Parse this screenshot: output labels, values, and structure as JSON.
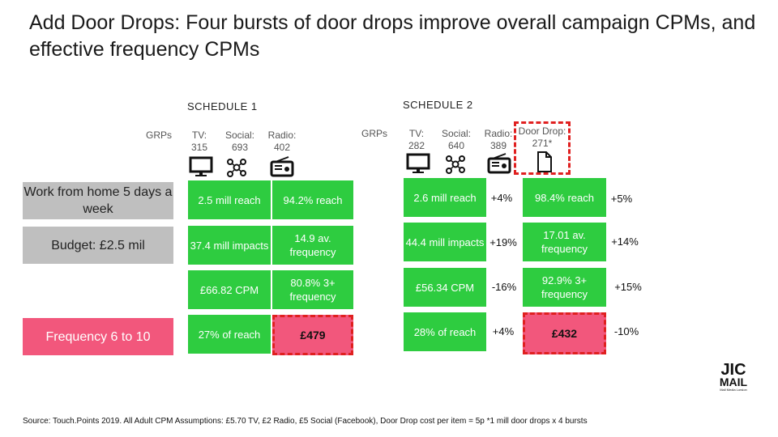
{
  "title": "Add Door Drops: Four bursts of door drops improve overall campaign CPMs, and effective frequency CPMs",
  "schedule1": {
    "label": "SCHEDULE 1",
    "grps_label": "GRPs",
    "media": [
      {
        "name": "TV:",
        "value": "315",
        "icon": "tv-icon"
      },
      {
        "name": "Social:",
        "value": "693",
        "icon": "social-network-icon"
      },
      {
        "name": "Radio:",
        "value": "402",
        "icon": "radio-icon"
      }
    ]
  },
  "schedule2": {
    "label": "SCHEDULE 2",
    "grps_label": "GRPs",
    "media": [
      {
        "name": "TV:",
        "value": "282",
        "icon": "tv-icon"
      },
      {
        "name": "Social:",
        "value": "640",
        "icon": "social-network-icon"
      },
      {
        "name": "Radio:",
        "value": "389",
        "icon": "radio-icon"
      },
      {
        "name": "Door Drop:",
        "value": "271*",
        "icon": "document-icon"
      }
    ]
  },
  "rows": [
    {
      "label": "Work from home 5 days a week",
      "s1": [
        "2.5 mill reach",
        "94.2% reach"
      ],
      "s2": [
        "2.6 mill reach",
        "98.4% reach"
      ],
      "deltas": [
        "+4%",
        "+5%"
      ]
    },
    {
      "label": "Budget: £2.5 mil",
      "s1": [
        "37.4 mill impacts",
        "14.9 av. frequency"
      ],
      "s2": [
        "44.4 mill impacts",
        "17.01 av. frequency"
      ],
      "deltas": [
        "+19%",
        "+14%"
      ]
    },
    {
      "label": "",
      "s1": [
        "£66.82 CPM",
        "80.8% 3+ frequency"
      ],
      "s2": [
        "£56.34 CPM",
        "92.9% 3+ frequency"
      ],
      "deltas": [
        "-16%",
        "+15%"
      ]
    },
    {
      "label": "Frequency 6 to 10",
      "s1": [
        "27% of reach",
        "£479"
      ],
      "s2": [
        "28% of reach",
        "£432"
      ],
      "deltas": [
        "+4%",
        "-10%"
      ]
    }
  ],
  "logo": {
    "line1": "JIC",
    "line2": "MAIL",
    "tagline": "Mail Media Lorsion"
  },
  "source": "Source: Touch.Points 2019. All Adult CPM Assumptions: £5.70 TV, £2 Radio, £5 Social (Facebook), Door Drop cost per item = 5p *1 mill door drops x 4 bursts",
  "colors": {
    "green": "#2ecc40",
    "pink": "#f2577c",
    "gray": "#bfbfbf",
    "dash_red": "#e02020"
  }
}
